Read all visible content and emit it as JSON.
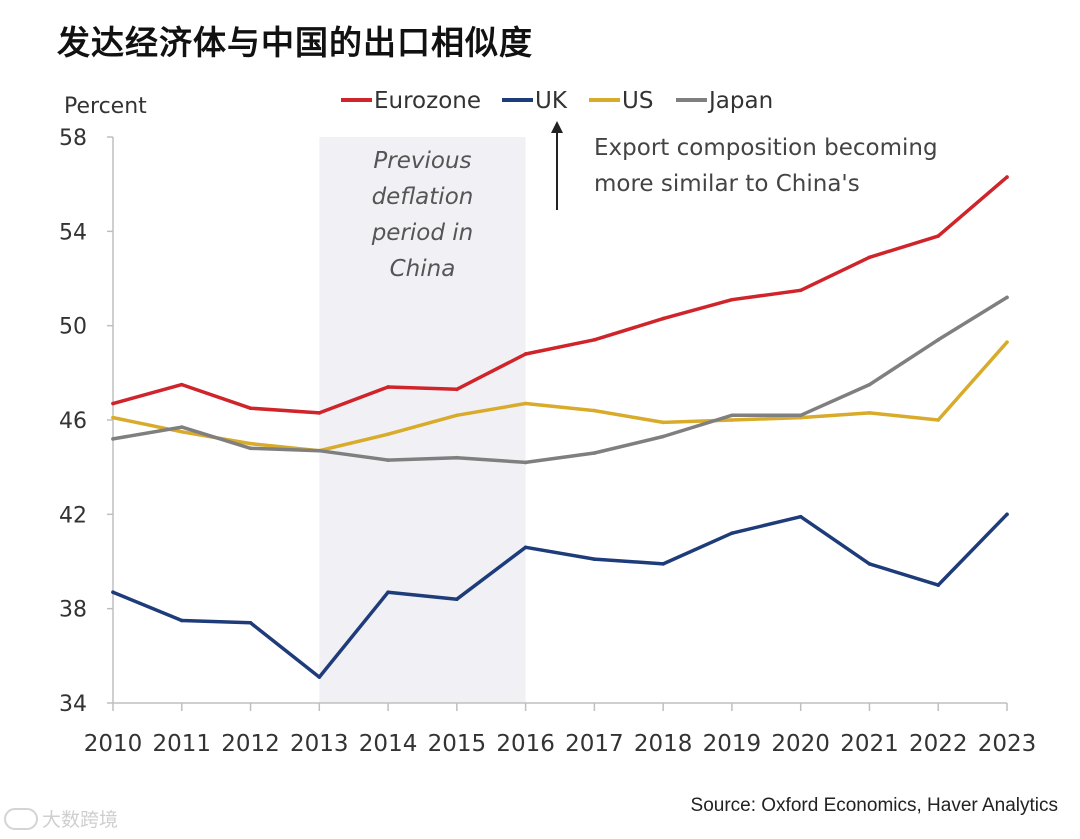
{
  "title": "发达经济体与中国的出口相似度",
  "source": "Source: Oxford Economics, Haver Analytics",
  "watermark": "大数跨境",
  "chart_data": {
    "type": "line",
    "title": "发达经济体与中国的出口相似度",
    "ylabel": "Percent",
    "xlabel": "",
    "x": [
      2010,
      2011,
      2012,
      2013,
      2014,
      2015,
      2016,
      2017,
      2018,
      2019,
      2020,
      2021,
      2022,
      2023
    ],
    "ylim": [
      34,
      58
    ],
    "yticks": [
      34,
      38,
      42,
      46,
      50,
      54,
      58
    ],
    "legend_position": "top",
    "series": [
      {
        "name": "Eurozone",
        "color": "#d0242b",
        "values": [
          46.7,
          47.5,
          46.5,
          46.3,
          47.4,
          47.3,
          48.8,
          49.4,
          50.3,
          51.1,
          51.5,
          52.9,
          53.8,
          56.3
        ]
      },
      {
        "name": "UK",
        "color": "#1f3c7a",
        "values": [
          38.7,
          37.5,
          37.4,
          35.1,
          38.7,
          38.4,
          40.6,
          40.1,
          39.9,
          41.2,
          41.9,
          39.9,
          39.0,
          42.0
        ]
      },
      {
        "name": "US",
        "color": "#d9ab2a",
        "values": [
          46.1,
          45.5,
          45.0,
          44.7,
          45.4,
          46.2,
          46.7,
          46.4,
          45.9,
          46.0,
          46.1,
          46.3,
          46.0,
          49.3
        ]
      },
      {
        "name": "Japan",
        "color": "#7f7f7f",
        "values": [
          45.2,
          45.7,
          44.8,
          44.7,
          44.3,
          44.4,
          44.2,
          44.6,
          45.3,
          46.2,
          46.2,
          47.5,
          49.4,
          51.2
        ]
      }
    ],
    "shaded_region": {
      "from": 2013,
      "to": 2016,
      "label_lines": [
        "Previous",
        "deflation",
        "period in",
        "China"
      ]
    },
    "annotation": {
      "lines": [
        "Export composition becoming",
        "more similar to China's"
      ],
      "arrow_direction": "up"
    }
  }
}
